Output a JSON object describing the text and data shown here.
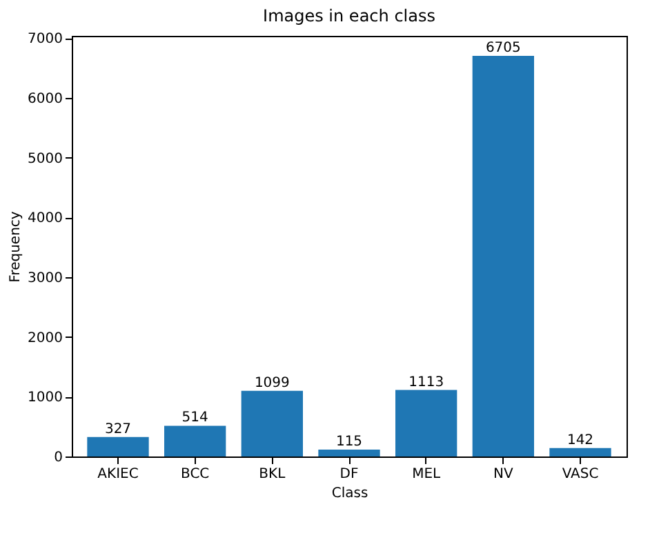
{
  "chart_data": {
    "type": "bar",
    "title": "Images in each class",
    "xlabel": "Class",
    "ylabel": "Frequency",
    "categories": [
      "AKIEC",
      "BCC",
      "BKL",
      "DF",
      "MEL",
      "NV",
      "VASC"
    ],
    "values": [
      327,
      514,
      1099,
      115,
      1113,
      6705,
      142
    ],
    "color": "#1f77b4",
    "ylim": [
      0,
      7040
    ],
    "yticks": [
      0,
      1000,
      2000,
      3000,
      4000,
      5000,
      6000,
      7000
    ],
    "grid": false,
    "data_labels": true
  }
}
